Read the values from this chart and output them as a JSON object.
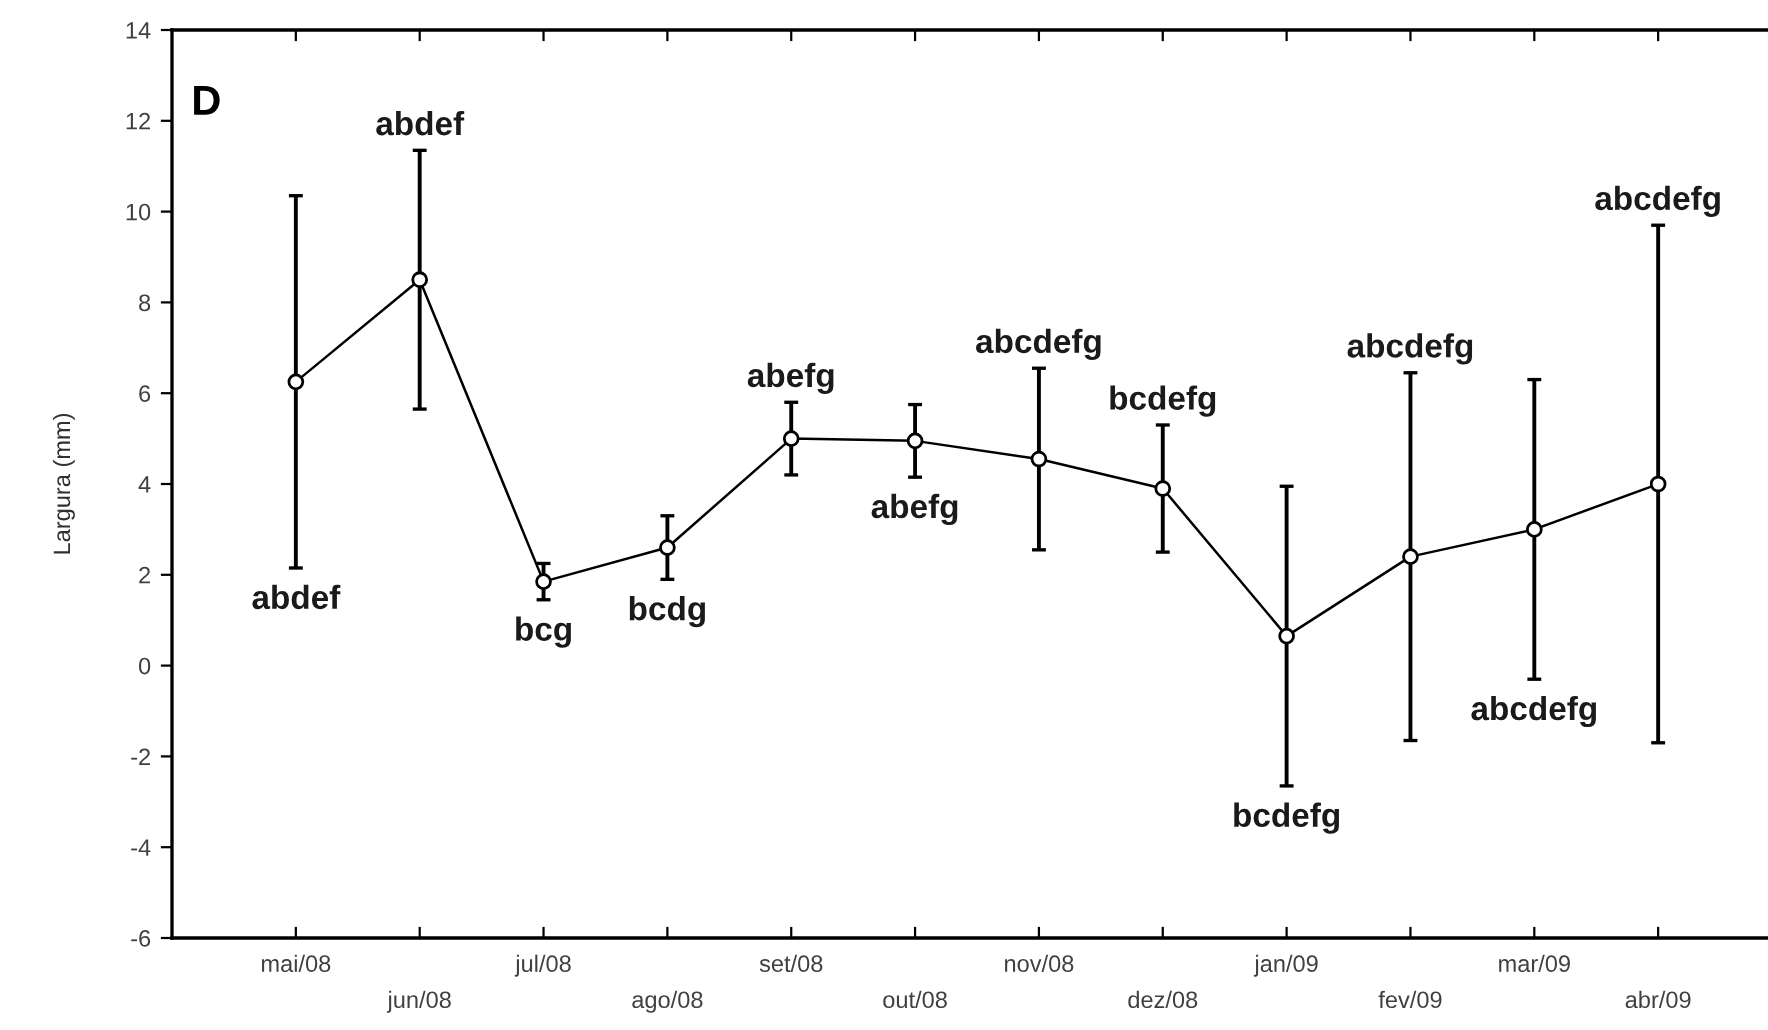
{
  "chart_data": {
    "type": "line",
    "ylabel": "Largura (mm)",
    "categories": [
      "mai/08",
      "jun/08",
      "jul/08",
      "ago/08",
      "set/08",
      "out/08",
      "nov/08",
      "dez/08",
      "jan/09",
      "fev/09",
      "mar/09",
      "abr/09"
    ],
    "values": [
      6.25,
      8.5,
      1.85,
      2.6,
      5.0,
      4.95,
      4.55,
      3.9,
      0.65,
      2.4,
      3.0,
      4.0
    ],
    "errors": [
      4.1,
      2.85,
      0.4,
      0.7,
      0.8,
      0.8,
      2.0,
      1.4,
      3.3,
      4.05,
      3.3,
      5.7
    ],
    "color": "#000000",
    "marker": "circle",
    "line_style": "solid",
    "grid": false,
    "ylim": [
      -6,
      14
    ],
    "yticks": [
      -6,
      -4,
      -2,
      0,
      2,
      4,
      6,
      8,
      10,
      12,
      14
    ],
    "annotations": [
      "D",
      {
        "text": "abdef",
        "x": "mai/08",
        "y": 2.15
      },
      {
        "text": "abdef",
        "x": "jun/08",
        "y": 11.35
      },
      {
        "text": "bcg",
        "x": "jul/08",
        "y": 1.45
      },
      {
        "text": "bcdg",
        "x": "ago/08",
        "y": 1.9
      },
      {
        "text": "abefg",
        "x": "set/08",
        "y": 5.8
      },
      {
        "text": "abefg",
        "x": "out/08",
        "y": 4.15
      },
      {
        "text": "abcdefg",
        "x": "nov/08",
        "y": 6.55
      },
      {
        "text": "bcdefg",
        "x": "dez/08",
        "y": 5.3
      },
      {
        "text": "bcdefg",
        "x": "jan/09",
        "y": -2.65
      },
      {
        "text": "abcdefg",
        "x": "fev/09",
        "y": 6.45
      },
      {
        "text": "abcdefg",
        "x": "mar/09",
        "y": -0.3
      },
      {
        "text": "abcdefg",
        "x": "abr/09",
        "y": 9.7
      }
    ]
  }
}
